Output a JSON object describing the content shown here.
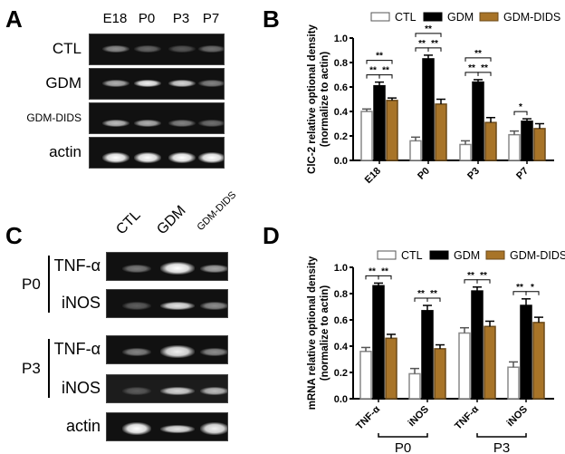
{
  "panels": {
    "A": {
      "letter": "A"
    },
    "B": {
      "letter": "B"
    },
    "C": {
      "letter": "C"
    },
    "D": {
      "letter": "D"
    }
  },
  "gel_A": {
    "lanes": [
      "E18",
      "P0",
      "P3",
      "P7"
    ],
    "rows": [
      {
        "label": "CTL",
        "intensity": [
          0.55,
          0.35,
          0.25,
          0.4
        ]
      },
      {
        "label": "GDM",
        "intensity": [
          0.7,
          0.95,
          0.85,
          0.5
        ]
      },
      {
        "label": "GDM-DIDS",
        "intensity": [
          0.75,
          0.7,
          0.5,
          0.4
        ]
      },
      {
        "label": "actin",
        "intensity": [
          1.0,
          1.0,
          1.0,
          1.0
        ]
      }
    ]
  },
  "gel_C": {
    "lanes": [
      "CTL",
      "GDM",
      "GDM-DIDS"
    ],
    "groups": [
      {
        "label": "P0",
        "rows": [
          "TNF-α",
          "iNOS"
        ]
      },
      {
        "label": "P3",
        "rows": [
          "TNF-α",
          "iNOS"
        ]
      }
    ],
    "rows": [
      {
        "label": "TNF-α",
        "intensity": [
          0.45,
          1.0,
          0.65
        ]
      },
      {
        "label": "iNOS",
        "intensity": [
          0.3,
          0.9,
          0.55
        ]
      },
      {
        "label": "TNF-α",
        "intensity": [
          0.5,
          0.95,
          0.55
        ]
      },
      {
        "label": "iNOS",
        "intensity": [
          0.25,
          0.85,
          0.75
        ]
      },
      {
        "label": "actin",
        "intensity": [
          1.0,
          0.9,
          0.95
        ]
      }
    ]
  },
  "colors": {
    "ctl": "#ffffff",
    "gdm": "#000000",
    "gdm_dids": "#a87428"
  },
  "chart_data": [
    {
      "panel": "B",
      "type": "bar",
      "title": "",
      "xlabel": "",
      "ylabel": "ClC-2 relative optional density (normalize to actin)",
      "ylabel_line1": "ClC-2 relative optional density",
      "ylabel_line2": "(normalize to actin)",
      "ylim": [
        0,
        1.0
      ],
      "yticks": [
        "0.0",
        "0.2",
        "0.4",
        "0.6",
        "0.8",
        "1.0"
      ],
      "categories": [
        "E18",
        "P0",
        "P3",
        "P7"
      ],
      "legend": [
        "CTL",
        "GDM",
        "GDM-DIDS"
      ],
      "legend_position": "top",
      "grid": false,
      "series": [
        {
          "name": "CTL",
          "values": [
            0.4,
            0.16,
            0.13,
            0.21
          ],
          "errors": [
            0.02,
            0.03,
            0.03,
            0.03
          ]
        },
        {
          "name": "GDM",
          "values": [
            0.61,
            0.83,
            0.64,
            0.32
          ],
          "errors": [
            0.03,
            0.03,
            0.02,
            0.02
          ]
        },
        {
          "name": "GDM-DIDS",
          "values": [
            0.49,
            0.46,
            0.31,
            0.26
          ],
          "errors": [
            0.02,
            0.04,
            0.04,
            0.04
          ]
        }
      ],
      "significance": [
        {
          "category": "E18",
          "pairs": [
            [
              "CTL",
              "GDM",
              "**"
            ],
            [
              "GDM",
              "GDM-DIDS",
              "**"
            ],
            [
              "CTL",
              "GDM-DIDS",
              "**"
            ]
          ]
        },
        {
          "category": "P0",
          "pairs": [
            [
              "CTL",
              "GDM",
              "**"
            ],
            [
              "GDM",
              "GDM-DIDS",
              "**"
            ],
            [
              "CTL",
              "GDM-DIDS",
              "**"
            ]
          ]
        },
        {
          "category": "P3",
          "pairs": [
            [
              "CTL",
              "GDM",
              "**"
            ],
            [
              "GDM",
              "GDM-DIDS",
              "**"
            ],
            [
              "CTL",
              "GDM-DIDS",
              "**"
            ]
          ]
        },
        {
          "category": "P7",
          "pairs": [
            [
              "CTL",
              "GDM",
              "*"
            ]
          ]
        }
      ]
    },
    {
      "panel": "D",
      "type": "bar",
      "title": "",
      "xlabel": "",
      "ylabel": "mRNA relative optional density (normalize to actin)",
      "ylabel_line1": "mRNA relative optional density",
      "ylabel_line2": "(normalize to actin)",
      "ylim": [
        0,
        1.0
      ],
      "yticks": [
        "0.0",
        "0.2",
        "0.4",
        "0.6",
        "0.8",
        "1.0"
      ],
      "categories": [
        "TNF-α",
        "iNOS",
        "TNF-α",
        "iNOS"
      ],
      "category_groups": [
        {
          "label": "P0",
          "span": [
            0,
            1
          ]
        },
        {
          "label": "P3",
          "span": [
            2,
            3
          ]
        }
      ],
      "legend": [
        "CTL",
        "GDM",
        "GDM-DIDS"
      ],
      "legend_position": "top",
      "grid": false,
      "series": [
        {
          "name": "CTL",
          "values": [
            0.36,
            0.19,
            0.5,
            0.24
          ],
          "errors": [
            0.03,
            0.04,
            0.04,
            0.04
          ]
        },
        {
          "name": "GDM",
          "values": [
            0.86,
            0.67,
            0.82,
            0.71
          ],
          "errors": [
            0.02,
            0.04,
            0.03,
            0.05
          ]
        },
        {
          "name": "GDM-DIDS",
          "values": [
            0.46,
            0.38,
            0.55,
            0.58
          ],
          "errors": [
            0.03,
            0.03,
            0.04,
            0.04
          ]
        }
      ],
      "significance": [
        {
          "category": "P0 TNF-α",
          "pairs": [
            [
              "CTL",
              "GDM",
              "**"
            ],
            [
              "GDM",
              "GDM-DIDS",
              "**"
            ]
          ]
        },
        {
          "category": "P0 iNOS",
          "pairs": [
            [
              "CTL",
              "GDM",
              "**"
            ],
            [
              "GDM",
              "GDM-DIDS",
              "**"
            ]
          ]
        },
        {
          "category": "P3 TNF-α",
          "pairs": [
            [
              "CTL",
              "GDM",
              "**"
            ],
            [
              "GDM",
              "GDM-DIDS",
              "**"
            ]
          ]
        },
        {
          "category": "P3 iNOS",
          "pairs": [
            [
              "CTL",
              "GDM",
              "**"
            ],
            [
              "GDM",
              "GDM-DIDS",
              "*"
            ]
          ]
        }
      ]
    }
  ]
}
